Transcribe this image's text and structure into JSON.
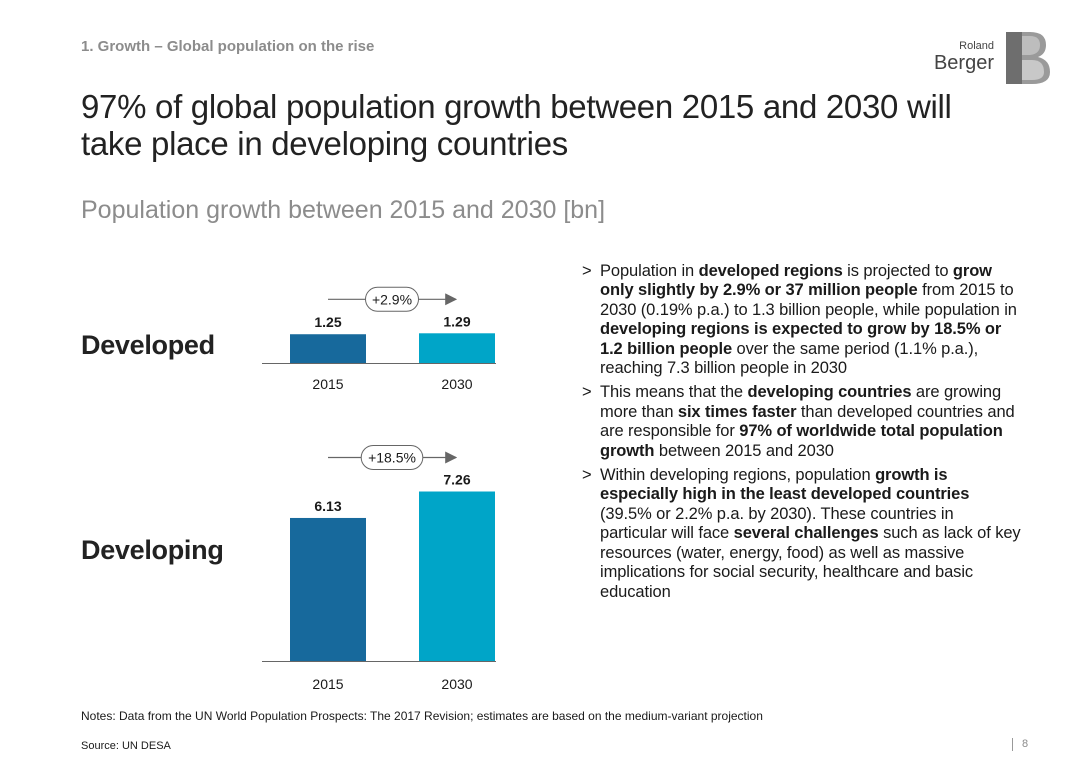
{
  "header": {
    "kicker": "1. Growth – Global population on the rise",
    "title": "97% of global population growth between 2015 and 2030 will take place in developing countries",
    "subtitle": "Population growth between 2015 and 2030 [bn]"
  },
  "logo": {
    "line1": "Roland",
    "line2": "Berger",
    "letter": "B"
  },
  "colors": {
    "bar_2015": "#17699c",
    "bar_2030": "#00a5c8",
    "text": "#1a1a1a",
    "muted": "#8c8c8c"
  },
  "chart_data": [
    {
      "type": "bar",
      "title": "Developed",
      "categories": [
        "2015",
        "2030"
      ],
      "values": [
        1.25,
        1.29
      ],
      "value_labels": [
        "1.25",
        "1.29"
      ],
      "growth_label": "+2.9%",
      "unit": "bn"
    },
    {
      "type": "bar",
      "title": "Developing",
      "categories": [
        "2015",
        "2030"
      ],
      "values": [
        6.13,
        7.26
      ],
      "value_labels": [
        "6.13",
        "7.26"
      ],
      "growth_label": "+18.5%",
      "unit": "bn"
    }
  ],
  "bullets": [
    [
      {
        "t": "Population in ",
        "b": false
      },
      {
        "t": "developed regions",
        "b": true
      },
      {
        "t": " is projected to ",
        "b": false
      },
      {
        "t": "grow only slightly by 2.9% or 37 million people",
        "b": true
      },
      {
        "t": " from 2015 to 2030 (0.19% p.a.) to 1.3 billion people, while population in ",
        "b": false
      },
      {
        "t": "developing regions is expected to grow by 18.5% or 1.2 billion people",
        "b": true
      },
      {
        "t": " over the same period (1.1% p.a.), reaching 7.3 billion people in 2030",
        "b": false
      }
    ],
    [
      {
        "t": "This means that the ",
        "b": false
      },
      {
        "t": "developing countries",
        "b": true
      },
      {
        "t": " are growing more than ",
        "b": false
      },
      {
        "t": "six times faster",
        "b": true
      },
      {
        "t": " than developed countries and are responsible for ",
        "b": false
      },
      {
        "t": "97% of worldwide total population growth",
        "b": true
      },
      {
        "t": " between 2015 and 2030",
        "b": false
      }
    ],
    [
      {
        "t": "Within developing regions, population ",
        "b": false
      },
      {
        "t": "growth is especially high in the least developed countries",
        "b": true
      },
      {
        "t": " (39.5% or 2.2% p.a. by 2030). These countries in particular will face ",
        "b": false
      },
      {
        "t": "several challenges",
        "b": true
      },
      {
        "t": " such as lack of key resources (water, energy, food) as well as massive implications for social security, healthcare and basic education",
        "b": false
      }
    ]
  ],
  "bullet_marker": ">",
  "footer": {
    "notes": "Notes: Data from the UN World Population Prospects: The 2017 Revision; estimates are based on the medium-variant projection",
    "source": "Source: UN DESA",
    "page": "8"
  }
}
